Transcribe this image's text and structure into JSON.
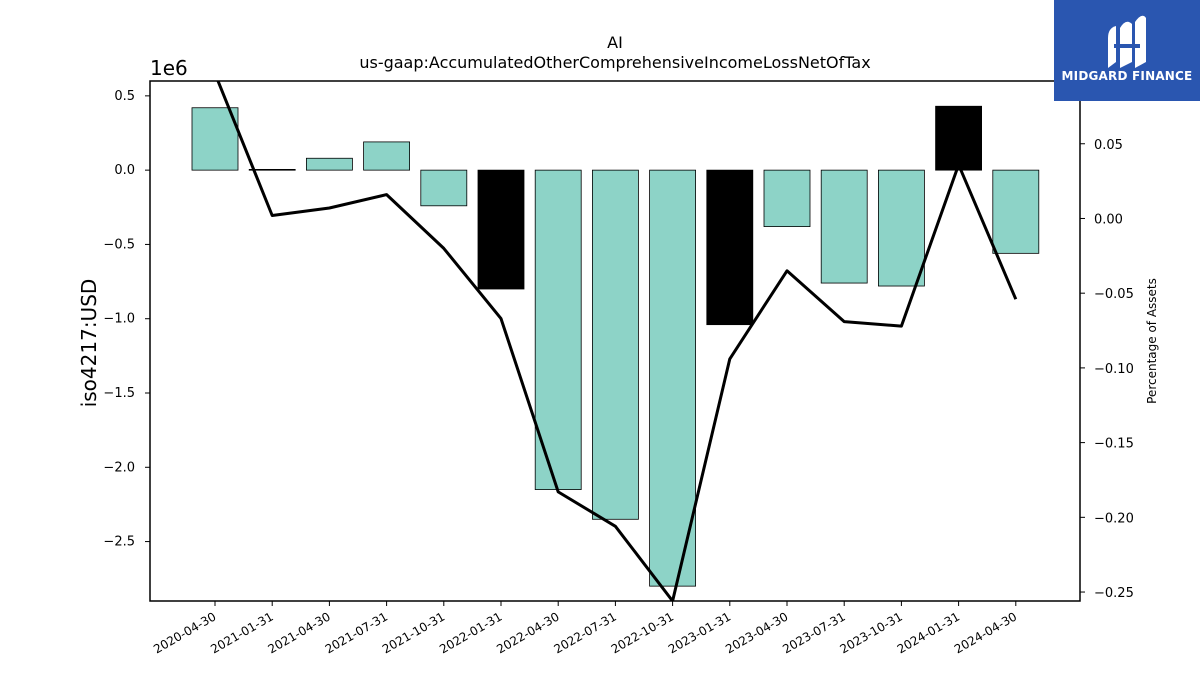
{
  "chart_data": {
    "type": "bar",
    "title": "AI",
    "subtitle": "us-gaap:AccumulatedOtherComprehensiveIncomeLossNetOfTax",
    "ylabel": "iso4217:USD",
    "ylabel_right": "Percentage of Assets",
    "y_multiplier": "1e6",
    "categories": [
      "2020-04-30",
      "2021-01-31",
      "2021-04-30",
      "2021-07-31",
      "2021-10-31",
      "2022-01-31",
      "2022-04-30",
      "2022-07-31",
      "2022-10-31",
      "2023-01-31",
      "2023-04-30",
      "2023-07-31",
      "2023-10-31",
      "2024-01-31",
      "2024-04-30"
    ],
    "values": [
      420000,
      5000,
      80000,
      190000,
      -240000,
      -800000,
      -2150000,
      -2350000,
      -2800000,
      -1040000,
      -380000,
      -760000,
      -780000,
      430000,
      -560000
    ],
    "bar_colors": [
      "#8dd3c7",
      "#000000",
      "#8dd3c7",
      "#8dd3c7",
      "#8dd3c7",
      "#000000",
      "#8dd3c7",
      "#8dd3c7",
      "#8dd3c7",
      "#000000",
      "#8dd3c7",
      "#8dd3c7",
      "#8dd3c7",
      "#000000",
      "#8dd3c7"
    ],
    "ylim": [
      -2.9,
      0.6
    ],
    "yticks": [
      0.5,
      0.0,
      -0.5,
      -1.0,
      -1.5,
      -2.0,
      -2.5
    ],
    "ytick_labels": [
      "0.5",
      "0.0",
      "−0.5",
      "−1.0",
      "−1.5",
      "−2.0",
      "−2.5"
    ],
    "secondary_series": {
      "name": "Percentage of Assets",
      "type": "line",
      "color": "#000000",
      "values": [
        0.097,
        0.002,
        0.007,
        0.016,
        -0.02,
        -0.067,
        -0.183,
        -0.206,
        -0.256,
        -0.094,
        -0.035,
        -0.069,
        -0.072,
        0.036,
        -0.054
      ]
    },
    "y2lim": [
      -0.256,
      0.092
    ],
    "y2ticks": [
      0.05,
      0.0,
      -0.05,
      -0.1,
      -0.15,
      -0.2,
      -0.25
    ],
    "y2tick_labels": [
      "0.05",
      "0.00",
      "−0.05",
      "−0.10",
      "−0.15",
      "−0.20",
      "−0.25"
    ],
    "grid": false
  },
  "brand": {
    "name": "MIDGARD FINANCE",
    "color": "#2a56b0"
  }
}
